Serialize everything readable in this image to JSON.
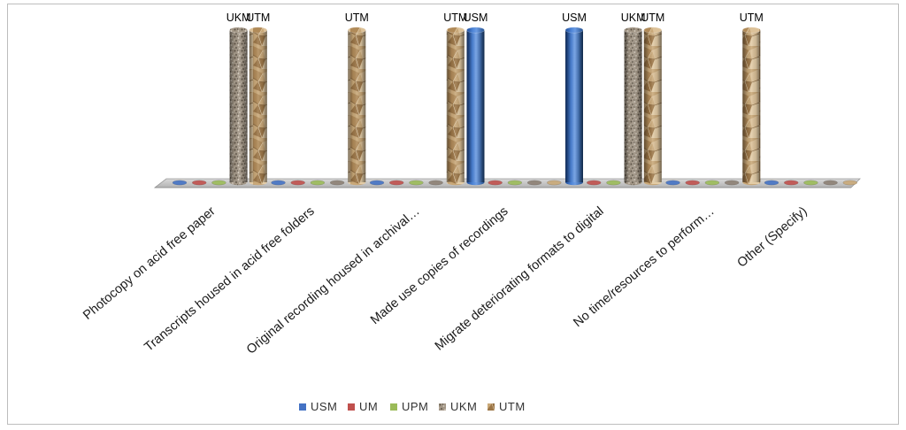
{
  "chart_data": {
    "type": "bar",
    "categories": [
      "Photocopy on acid free paper",
      "Transcripts housed in acid free folders",
      "Original recording housed in archival…",
      "Made use copies of recordings",
      "Migrate deteriorating formats to digital",
      "No time/resources to perform…",
      "Other (Specify)"
    ],
    "series": [
      {
        "name": "USM",
        "values": [
          0,
          0,
          0,
          1,
          1,
          0,
          0
        ],
        "color": "#4472c4",
        "fill": "solid-blue"
      },
      {
        "name": "UM",
        "values": [
          0,
          0,
          0,
          0,
          0,
          0,
          0
        ],
        "color": "#c0504d",
        "fill": "solid-red"
      },
      {
        "name": "UPM",
        "values": [
          0,
          0,
          0,
          0,
          0,
          0,
          0
        ],
        "color": "#9bbb59",
        "fill": "solid-green"
      },
      {
        "name": "UKM",
        "values": [
          1,
          0,
          0,
          0,
          1,
          0,
          0
        ],
        "color": "#8c8073",
        "fill": "granite-texture"
      },
      {
        "name": "UTM",
        "values": [
          1,
          1,
          1,
          0,
          1,
          1,
          0
        ],
        "color": "#c9a878",
        "fill": "crumpled-paper-texture"
      }
    ],
    "data_labels": "series-name-on-nonzero-bars",
    "bar_shape": "cylinder",
    "floor": "3d-gray-slab",
    "value_axis_visible": false,
    "gridlines": false,
    "legend": {
      "position": "bottom",
      "entries": [
        "USM",
        "UM",
        "UPM",
        "UKM",
        "UTM"
      ]
    }
  }
}
